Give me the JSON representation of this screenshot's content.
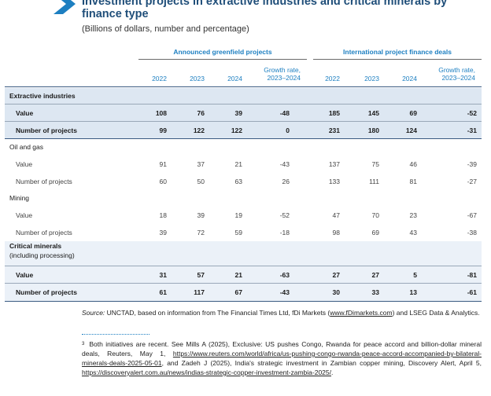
{
  "header": {
    "title": "Investment projects in extractive industries and critical minerals by finance type",
    "subtitle": "(Billions of dollars, number and percentage)"
  },
  "groups": {
    "greenfield": "Announced greenfield projects",
    "finance": "International project finance deals"
  },
  "columns": {
    "y2022": "2022",
    "y2023": "2023",
    "y2024": "2024",
    "growth_line1": "Growth rate,",
    "growth_line2": "2023–2024"
  },
  "rows": [
    {
      "label": "Extractive industries",
      "section": true
    },
    {
      "label": "Value",
      "values": [
        "108",
        "76",
        "39",
        "-48",
        "185",
        "145",
        "69",
        "-52"
      ]
    },
    {
      "label": "Number of projects",
      "values": [
        "99",
        "122",
        "122",
        "0",
        "231",
        "180",
        "124",
        "-31"
      ]
    },
    {
      "label": "Oil and gas",
      "section": true
    },
    {
      "label": "Value",
      "values": [
        "91",
        "37",
        "21",
        "-43",
        "137",
        "75",
        "46",
        "-39"
      ]
    },
    {
      "label": "Number of projects",
      "values": [
        "60",
        "50",
        "63",
        "26",
        "133",
        "111",
        "81",
        "-27"
      ]
    },
    {
      "label": "Mining",
      "section": true
    },
    {
      "label": "Value",
      "values": [
        "18",
        "39",
        "19",
        "-52",
        "47",
        "70",
        "23",
        "-67"
      ]
    },
    {
      "label": "Number of projects",
      "values": [
        "39",
        "72",
        "59",
        "-18",
        "98",
        "69",
        "43",
        "-38"
      ]
    },
    {
      "label": "Critical minerals",
      "sublabel": "(including processing)",
      "section": true
    },
    {
      "label": "Value",
      "values": [
        "31",
        "57",
        "21",
        "-63",
        "27",
        "27",
        "5",
        "-81"
      ]
    },
    {
      "label": "Number of projects",
      "values": [
        "61",
        "117",
        "67",
        "-43",
        "30",
        "33",
        "13",
        "-61"
      ]
    }
  ],
  "source": {
    "prefix": "Source:",
    "text_a": " UNCTAD, based on information from The Financial Times Ltd, fDi Markets (",
    "link": "www.fDimarkets.com",
    "text_b": ") and LSEG Data & Analytics."
  },
  "footnote": {
    "marker": "3",
    "text_a": "Both initiatives are recent. See Mills A (2025), Exclusive: US pushes Congo, Rwanda for peace accord and billion-dollar mineral deals, Reuters, May 1, ",
    "link_a": "https://www.reuters.com/world/africa/us-pushing-congo-rwanda-peace-accord-accompanied-by-bilateral-minerals-deals-2025-05-01",
    "text_b": ", and Zadeh J (2025), India's strategic investment in Zambian copper mining, Discovery Alert, April 5, ",
    "link_b": "https://discoveryalert.com.au/news/indias-strategic-copper-investment-zambia-2025/",
    "text_c": "."
  },
  "colors": {
    "title": "#1f4e79",
    "accent": "#1d7fc1",
    "band": "#dde7f2"
  }
}
